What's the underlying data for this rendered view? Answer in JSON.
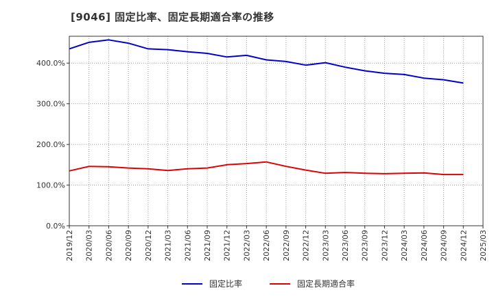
{
  "chart_data": {
    "type": "line",
    "title": "[9046]  固定比率、固定長期適合率の推移",
    "xlabel": "",
    "ylabel": "",
    "ylim": [
      0,
      466
    ],
    "y_ticks": [
      {
        "value": 0,
        "label": "0.0%"
      },
      {
        "value": 100,
        "label": "100.0%"
      },
      {
        "value": 200,
        "label": "200.0%"
      },
      {
        "value": 300,
        "label": "300.0%"
      },
      {
        "value": 400,
        "label": "400.0%"
      }
    ],
    "x_tick_labels": [
      "2019/12",
      "2020/03",
      "2020/06",
      "2020/09",
      "2020/12",
      "2021/03",
      "2021/06",
      "2021/09",
      "2021/12",
      "2022/03",
      "2022/06",
      "2022/09",
      "2022/12",
      "2023/03",
      "2023/06",
      "2023/09",
      "2023/12",
      "2024/03",
      "2024/06",
      "2024/09",
      "2024/12",
      "2025/03"
    ],
    "categories": [
      "2019/12",
      "2020/03",
      "2020/06",
      "2020/09",
      "2020/12",
      "2021/03",
      "2021/06",
      "2021/09",
      "2021/12",
      "2022/03",
      "2022/06",
      "2022/09",
      "2022/12",
      "2023/03",
      "2023/06",
      "2023/09",
      "2023/12",
      "2024/03",
      "2024/06",
      "2024/09",
      "2024/12"
    ],
    "series": [
      {
        "name": "固定比率",
        "color": "#0000cc",
        "values": [
          435,
          451,
          457,
          449,
          435,
          433,
          428,
          424,
          415,
          419,
          408,
          404,
          395,
          401,
          390,
          381,
          375,
          372,
          363,
          359,
          351
        ]
      },
      {
        "name": "固定長期適合率",
        "color": "#dd0000",
        "values": [
          135,
          146,
          145,
          142,
          140,
          136,
          140,
          142,
          150,
          153,
          157,
          146,
          137,
          129,
          131,
          129,
          128,
          129,
          130,
          126,
          126
        ]
      }
    ],
    "grid": true,
    "legend_position": "bottom-center"
  }
}
